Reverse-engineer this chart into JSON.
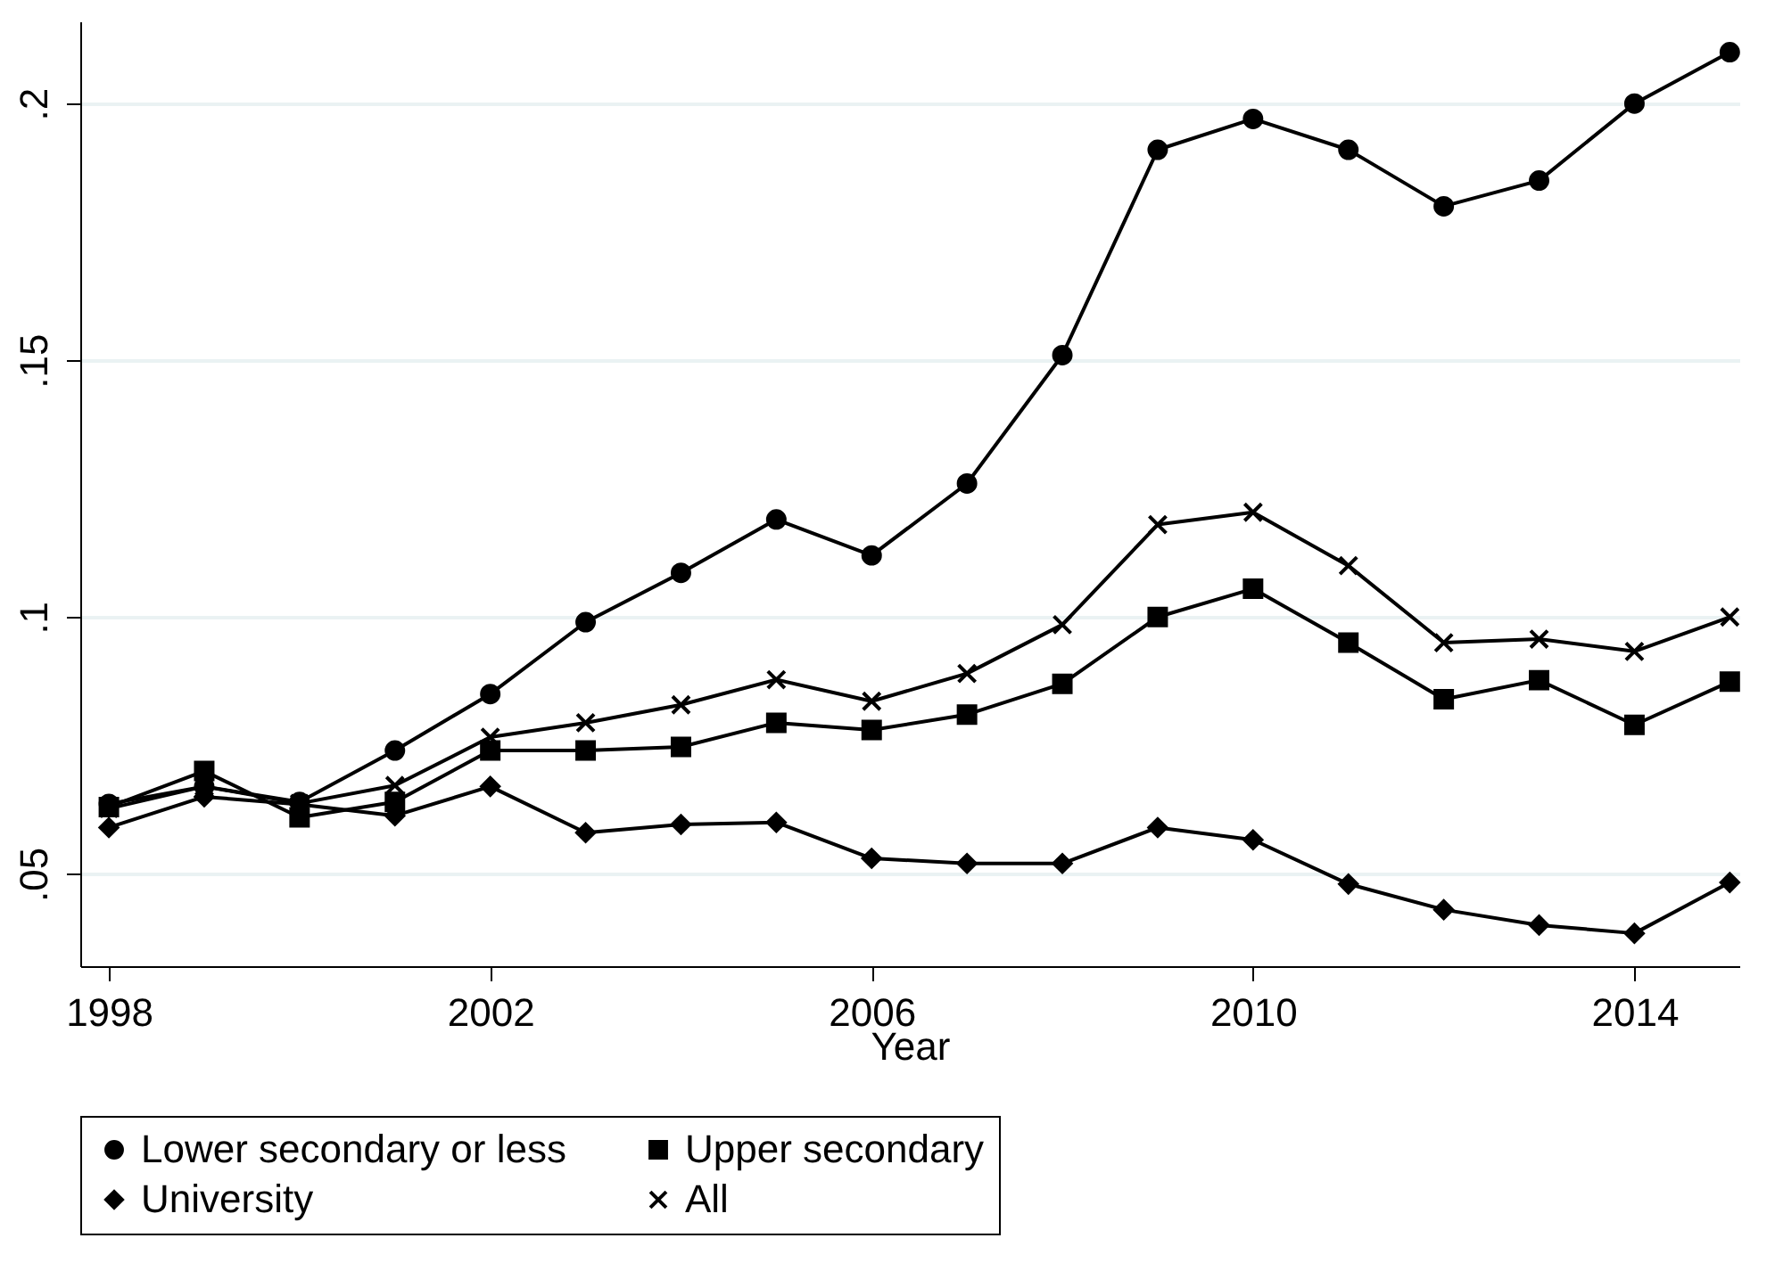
{
  "chart_data": {
    "type": "line",
    "xlabel": "Year",
    "x": [
      1998,
      1999,
      2000,
      2001,
      2002,
      2003,
      2004,
      2005,
      2006,
      2007,
      2008,
      2009,
      2010,
      2011,
      2012,
      2013,
      2014,
      2015
    ],
    "series": [
      {
        "name": "Lower secondary or less",
        "color": "#000000",
        "marker": "circle",
        "values": [
          0.0636,
          0.067,
          0.064,
          0.074,
          0.085,
          0.099,
          0.1086,
          0.119,
          0.112,
          0.126,
          0.151,
          0.191,
          0.197,
          0.191,
          0.18,
          0.185,
          0.2,
          0.21
        ]
      },
      {
        "name": "Upper secondary",
        "color": "#000000",
        "marker": "square",
        "values": [
          0.063,
          0.07,
          0.061,
          0.064,
          0.074,
          0.074,
          0.0747,
          0.0794,
          0.078,
          0.081,
          0.087,
          0.1,
          0.1055,
          0.095,
          0.084,
          0.0877,
          0.079,
          0.0874
        ]
      },
      {
        "name": "University",
        "color": "#000000",
        "marker": "diamond",
        "values": [
          0.059,
          0.065,
          0.0635,
          0.0613,
          0.067,
          0.058,
          0.0596,
          0.06,
          0.053,
          0.052,
          0.052,
          0.059,
          0.0566,
          0.048,
          0.043,
          0.04,
          0.0384,
          0.0483
        ]
      },
      {
        "name": "All",
        "color": "#000000",
        "marker": "cross",
        "values": [
          0.0627,
          0.067,
          0.0637,
          0.0672,
          0.0766,
          0.0794,
          0.0829,
          0.0878,
          0.0836,
          0.089,
          0.0985,
          0.118,
          0.1204,
          0.11,
          0.095,
          0.0957,
          0.0933,
          0.1
        ]
      }
    ],
    "xlim": [
      1997.7,
      2015.1
    ],
    "xticks": [
      1998,
      2002,
      2006,
      2010,
      2014
    ],
    "ylim": [
      0.032,
      0.216
    ],
    "yticks": [
      {
        "value": 0.05,
        "label": ".05"
      },
      {
        "value": 0.1,
        "label": ".1"
      },
      {
        "value": 0.15,
        "label": ".15"
      },
      {
        "value": 0.2,
        "label": ".2"
      }
    ],
    "grid": "y",
    "legend": "bottom",
    "line_style": "solid"
  }
}
